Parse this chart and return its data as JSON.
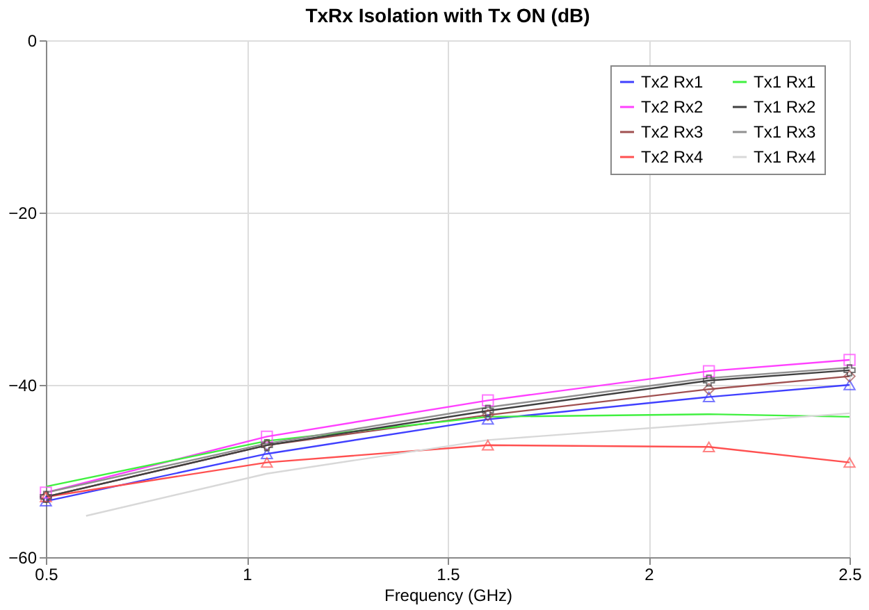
{
  "chart_data": {
    "type": "line",
    "title": "TxRx Isolation with Tx ON (dB)",
    "xlabel": "Frequency (GHz)",
    "x": [
      0.5,
      1.05,
      1.6,
      2.15,
      2.5
    ],
    "series": [
      {
        "name": "Tx2 Rx1",
        "color": "#4040ff",
        "marker": "triangle",
        "values": [
          -53.5,
          -48,
          -44,
          -41.4,
          -40
        ]
      },
      {
        "name": "Tx2 Rx2",
        "color": "#ff40ff",
        "marker": "square",
        "values": [
          -52.5,
          -46,
          -41.8,
          -38.4,
          -37.1
        ]
      },
      {
        "name": "Tx2 Rx3",
        "color": "#a05050",
        "marker": "diamond",
        "values": [
          -53,
          -47,
          -43.5,
          -40.5,
          -39
        ]
      },
      {
        "name": "Tx2 Rx4",
        "color": "#ff5050",
        "marker": "triangle",
        "values": [
          -53,
          -49,
          -47,
          -47.2,
          -49
        ]
      },
      {
        "name": "Tx1 Rx1",
        "color": "#40f040",
        "marker": "none",
        "values": [
          -51.8,
          -46.5,
          -43.7,
          -43.4,
          -43.7
        ]
      },
      {
        "name": "Tx1 Rx2",
        "color": "#404040",
        "marker": "cross",
        "values": [
          -53,
          -47,
          -43,
          -39.5,
          -38.3
        ]
      },
      {
        "name": "Tx1 Rx3",
        "color": "#909090",
        "marker": "none",
        "values": [
          -52.5,
          -46.8,
          -42.6,
          -39.2,
          -38
        ]
      },
      {
        "name": "Tx1 Rx4",
        "color": "#d8d8d8",
        "marker": "none",
        "x": [
          0.6,
          1.05,
          1.6,
          2.15,
          2.5
        ],
        "values": [
          -55.2,
          -50.3,
          -46.4,
          -44.5,
          -43.3
        ]
      }
    ],
    "xlim": [
      0.5,
      2.5
    ],
    "xticks": [
      0.5,
      1,
      1.5,
      2,
      2.5
    ],
    "ylim": [
      -60,
      0
    ],
    "yticks": [
      0,
      -20,
      -40,
      -60
    ],
    "grid": true,
    "legend": "top right"
  }
}
